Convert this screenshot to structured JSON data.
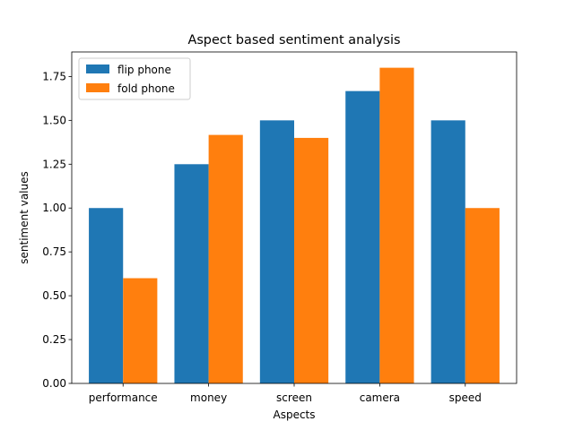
{
  "chart_data": {
    "type": "bar",
    "title": "Aspect based sentiment analysis",
    "xlabel": "Aspects",
    "ylabel": "sentiment values",
    "categories": [
      "performance",
      "money",
      "screen",
      "camera",
      "speed"
    ],
    "series": [
      {
        "name": "flip phone",
        "values": [
          1.0,
          1.25,
          1.5,
          1.667,
          1.5
        ],
        "color": "#1f77b4"
      },
      {
        "name": "fold phone",
        "values": [
          0.6,
          1.417,
          1.4,
          1.8,
          1.0
        ],
        "color": "#ff7f0e"
      }
    ],
    "yticks": [
      "0.00",
      "0.25",
      "0.50",
      "0.75",
      "1.00",
      "1.25",
      "1.50",
      "1.75"
    ],
    "ylim": [
      0,
      1.89
    ],
    "legend": "top-left",
    "grid": false
  }
}
